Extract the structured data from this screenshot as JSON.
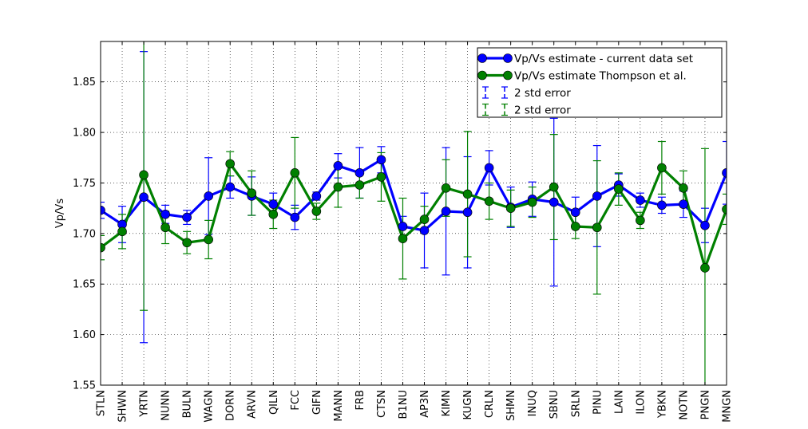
{
  "chart_data": {
    "type": "line",
    "ylabel": "Vp/Vs",
    "xlabel": "",
    "title": "",
    "ylim": [
      1.55,
      1.89
    ],
    "yticks": [
      "1.55",
      "1.60",
      "1.65",
      "1.70",
      "1.75",
      "1.80",
      "1.85"
    ],
    "grid": true,
    "legend_position": "top-right",
    "categories": [
      "STLN",
      "SHWN",
      "YRTN",
      "NUNN",
      "BULN",
      "WAGN",
      "DORN",
      "ARVN",
      "QILN",
      "FCC",
      "GIFN",
      "MANN",
      "FRB",
      "CTSN",
      "B1NU",
      "AP3N",
      "KIMN",
      "KUGN",
      "CRLN",
      "SHMN",
      "INUQ",
      "SBNU",
      "SRLN",
      "PINU",
      "LAIN",
      "ILON",
      "YBKN",
      "NOTN",
      "PNGN",
      "MNGN"
    ],
    "series": [
      {
        "name": "Vp/Vs estimate -  current data set",
        "color": "#0000ff",
        "values": [
          1.723,
          1.709,
          1.736,
          1.719,
          1.716,
          1.737,
          1.746,
          1.737,
          1.729,
          1.716,
          1.737,
          1.767,
          1.76,
          1.773,
          1.707,
          1.703,
          1.722,
          1.721,
          1.765,
          1.726,
          1.734,
          1.731,
          1.721,
          1.737,
          1.748,
          1.733,
          1.728,
          1.729,
          1.708,
          1.76
        ],
        "error": [
          0.008,
          0.018,
          0.144,
          0.009,
          0.007,
          0.038,
          0.011,
          0.019,
          0.011,
          0.012,
          0.004,
          0.012,
          0.025,
          0.013,
          0.01,
          0.037,
          0.063,
          0.055,
          0.017,
          0.02,
          0.017,
          0.083,
          0.015,
          0.05,
          0.011,
          0.007,
          0.008,
          0.013,
          0.017,
          0.031
        ]
      },
      {
        "name": "Vp/Vs estimate Thompson et al.",
        "color": "#008000",
        "values": [
          1.686,
          1.702,
          1.758,
          1.706,
          1.691,
          1.694,
          1.769,
          1.74,
          1.719,
          1.76,
          1.722,
          1.746,
          1.748,
          1.756,
          1.695,
          1.714,
          1.745,
          1.739,
          1.732,
          1.725,
          1.731,
          1.746,
          1.707,
          1.706,
          1.744,
          1.713,
          1.765,
          1.745,
          1.666,
          1.724
        ],
        "error": [
          0.012,
          0.017,
          0.134,
          0.016,
          0.011,
          0.019,
          0.012,
          0.022,
          0.014,
          0.035,
          0.008,
          0.02,
          0.013,
          0.024,
          0.04,
          0.013,
          0.028,
          0.062,
          0.018,
          0.018,
          0.015,
          0.052,
          0.012,
          0.066,
          0.016,
          0.008,
          0.026,
          0.017,
          0.118,
          0.015
        ]
      }
    ],
    "legend": [
      {
        "label": "Vp/Vs estimate -  current data set",
        "kind": "line-marker",
        "color": "#0000ff"
      },
      {
        "label": "Vp/Vs estimate Thompson et al.",
        "kind": "line-marker",
        "color": "#008000"
      },
      {
        "label": "2 std error",
        "kind": "errorbar",
        "color": "#0000ff"
      },
      {
        "label": "2 std error",
        "kind": "errorbar",
        "color": "#008000"
      }
    ]
  }
}
